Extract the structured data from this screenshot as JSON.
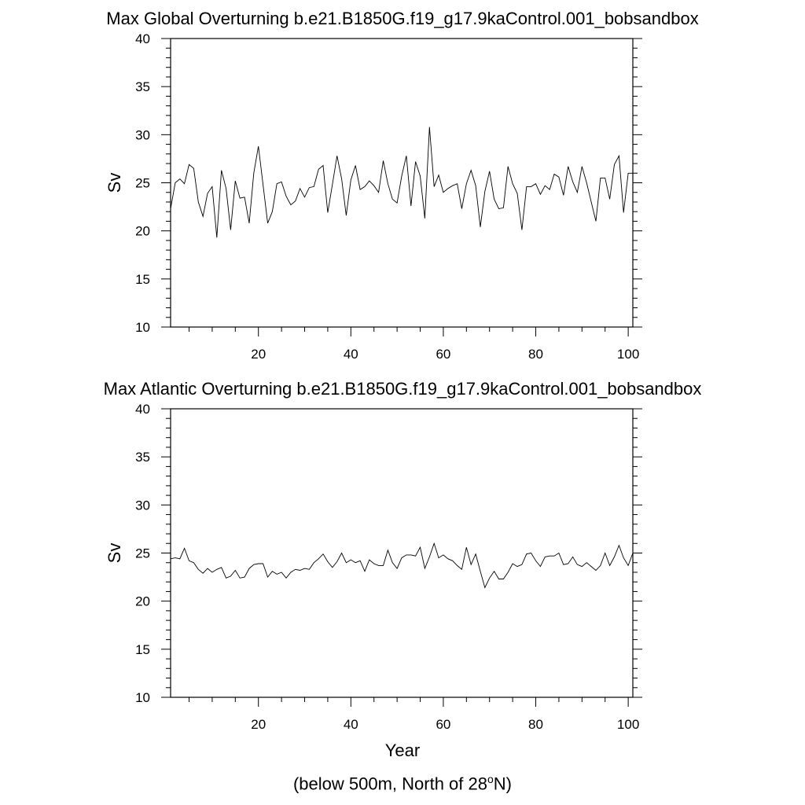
{
  "chart_data": [
    {
      "type": "line",
      "title": "Max Global Overturning b.e21.B1850G.f19_g17.9kaControl.001_bobsandbox",
      "ylabel": "Sv",
      "xlabel": "",
      "xlim": [
        1,
        101
      ],
      "ylim": [
        10,
        40
      ],
      "xticks": [
        20,
        40,
        60,
        80,
        100
      ],
      "yticks": [
        10,
        15,
        20,
        25,
        30,
        35,
        40
      ],
      "grid": false,
      "series": [
        {
          "name": "",
          "color": "#000000",
          "x": [
            1,
            2,
            3,
            4,
            5,
            6,
            7,
            8,
            9,
            10,
            11,
            12,
            13,
            14,
            15,
            16,
            17,
            18,
            19,
            20,
            21,
            22,
            23,
            24,
            25,
            26,
            27,
            28,
            29,
            30,
            31,
            32,
            33,
            34,
            35,
            36,
            37,
            38,
            39,
            40,
            41,
            42,
            43,
            44,
            45,
            46,
            47,
            48,
            49,
            50,
            51,
            52,
            53,
            54,
            55,
            56,
            57,
            58,
            59,
            60,
            61,
            62,
            63,
            64,
            65,
            66,
            67,
            68,
            69,
            70,
            71,
            72,
            73,
            74,
            75,
            76,
            77,
            78,
            79,
            80,
            81,
            82,
            83,
            84,
            85,
            86,
            87,
            88,
            89,
            90,
            91,
            92,
            93,
            94,
            95,
            96,
            97,
            98,
            99,
            100,
            101
          ],
          "values": [
            22.3,
            25.0,
            25.4,
            24.9,
            26.9,
            26.5,
            23.0,
            21.5,
            23.9,
            24.6,
            19.3,
            26.3,
            24.4,
            20.1,
            25.2,
            23.4,
            23.5,
            20.8,
            26.0,
            28.8,
            24.8,
            20.8,
            22.0,
            24.9,
            25.1,
            23.6,
            22.7,
            23.1,
            24.4,
            23.5,
            24.5,
            24.6,
            26.4,
            26.8,
            21.9,
            24.8,
            27.8,
            25.4,
            21.6,
            25.3,
            26.8,
            24.3,
            24.6,
            25.2,
            24.7,
            24.0,
            27.3,
            24.9,
            23.3,
            22.9,
            25.7,
            27.8,
            22.6,
            27.2,
            25.7,
            21.3,
            30.8,
            24.6,
            25.8,
            24.0,
            24.4,
            24.7,
            24.9,
            22.3,
            24.9,
            26.3,
            24.7,
            20.4,
            24.1,
            26.2,
            23.3,
            22.3,
            22.4,
            26.7,
            24.9,
            23.9,
            20.1,
            24.6,
            24.6,
            24.9,
            23.8,
            24.7,
            24.3,
            25.9,
            25.6,
            23.7,
            26.7,
            25.1,
            24.0,
            26.7,
            25.0,
            23.0,
            21.0,
            25.5,
            25.5,
            23.3,
            26.9,
            27.8,
            21.9,
            26.0,
            26.0
          ]
        }
      ]
    },
    {
      "type": "line",
      "title": "Max Atlantic Overturning b.e21.B1850G.f19_g17.9kaControl.001_bobsandbox",
      "ylabel": "Sv",
      "xlabel": "Year",
      "xlim": [
        1,
        101
      ],
      "ylim": [
        10,
        40
      ],
      "xticks": [
        20,
        40,
        60,
        80,
        100
      ],
      "yticks": [
        10,
        15,
        20,
        25,
        30,
        35,
        40
      ],
      "grid": false,
      "series": [
        {
          "name": "",
          "color": "#000000",
          "x": [
            1,
            2,
            3,
            4,
            5,
            6,
            7,
            8,
            9,
            10,
            11,
            12,
            13,
            14,
            15,
            16,
            17,
            18,
            19,
            20,
            21,
            22,
            23,
            24,
            25,
            26,
            27,
            28,
            29,
            30,
            31,
            32,
            33,
            34,
            35,
            36,
            37,
            38,
            39,
            40,
            41,
            42,
            43,
            44,
            45,
            46,
            47,
            48,
            49,
            50,
            51,
            52,
            53,
            54,
            55,
            56,
            57,
            58,
            59,
            60,
            61,
            62,
            63,
            64,
            65,
            66,
            67,
            68,
            69,
            70,
            71,
            72,
            73,
            74,
            75,
            76,
            77,
            78,
            79,
            80,
            81,
            82,
            83,
            84,
            85,
            86,
            87,
            88,
            89,
            90,
            91,
            92,
            93,
            94,
            95,
            96,
            97,
            98,
            99,
            100,
            101
          ],
          "values": [
            24.4,
            24.5,
            24.4,
            25.5,
            24.2,
            24.0,
            23.3,
            22.9,
            23.4,
            23.0,
            23.3,
            23.5,
            22.4,
            22.6,
            23.2,
            22.4,
            22.5,
            23.4,
            23.8,
            23.9,
            23.9,
            22.5,
            23.1,
            22.8,
            23.0,
            22.4,
            23.0,
            23.3,
            23.2,
            23.4,
            23.3,
            24.0,
            24.4,
            24.9,
            24.1,
            23.5,
            24.1,
            25.0,
            24.0,
            24.3,
            24.0,
            24.2,
            23.1,
            24.3,
            23.9,
            23.7,
            23.7,
            25.3,
            24.0,
            23.4,
            24.5,
            24.8,
            24.8,
            24.7,
            25.6,
            23.4,
            24.6,
            26.0,
            24.5,
            24.8,
            24.4,
            24.2,
            23.7,
            23.3,
            25.6,
            23.8,
            24.9,
            23.1,
            21.4,
            22.4,
            23.1,
            22.3,
            22.3,
            23.0,
            23.9,
            23.6,
            23.8,
            24.9,
            25.0,
            24.2,
            23.6,
            24.6,
            24.7,
            24.7,
            25.0,
            23.8,
            23.9,
            24.6,
            23.8,
            23.6,
            24.0,
            23.6,
            23.2,
            23.7,
            25.0,
            23.7,
            24.6,
            25.8,
            24.5,
            23.7,
            25.0
          ]
        }
      ]
    }
  ],
  "footnote": {
    "text": "(below 500m, North of 28",
    "sup": "o",
    "tail": "N)"
  }
}
